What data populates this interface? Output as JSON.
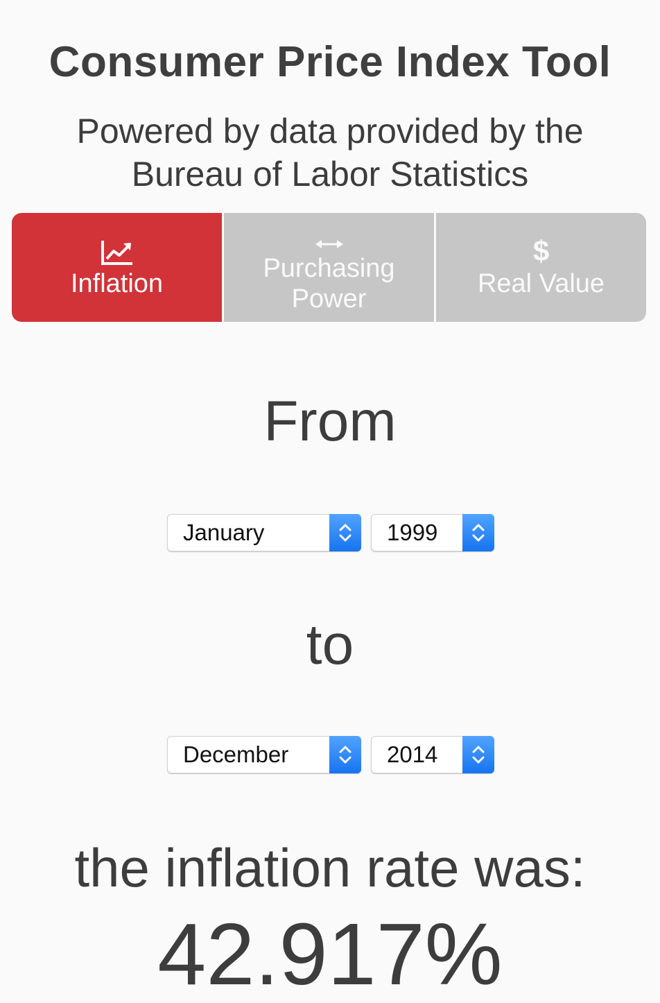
{
  "header": {
    "title": "Consumer Price Index Tool",
    "subtitle": "Powered by data provided by the Bureau of Labor Statistics"
  },
  "tabs": [
    {
      "label": "Inflation",
      "icon": "line-chart-icon",
      "active": true
    },
    {
      "label": "Purchasing Power",
      "icon": "left-right-arrow-icon",
      "active": false
    },
    {
      "label": "Real Value",
      "icon": "dollar-icon",
      "glyph": "$",
      "active": false
    }
  ],
  "colors": {
    "active_tab": "#d13338",
    "inactive_tab": "#c6c6c6",
    "stepper_blue": "#1774f0",
    "text": "#3d3d3d"
  },
  "form": {
    "from_label": "From",
    "from_month": "January",
    "from_year": "1999",
    "to_label": "to",
    "to_month": "December",
    "to_year": "2014"
  },
  "result": {
    "label": "the inflation rate was:",
    "value": "42.917%"
  }
}
